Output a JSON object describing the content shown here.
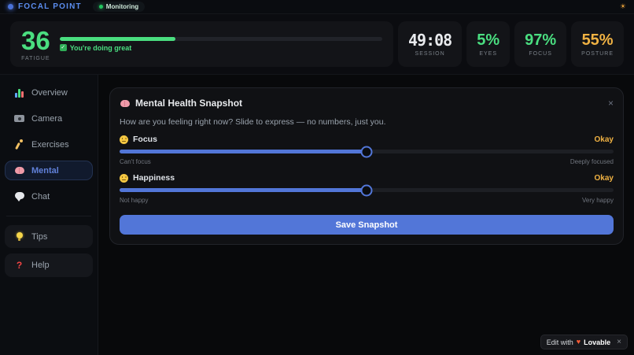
{
  "topbar": {
    "app_name": "FOCAL POINT",
    "status_badge": "Monitoring",
    "sun_glyph": "☀"
  },
  "stats": {
    "fatigue": {
      "value": "36",
      "label": "FATIGUE",
      "progress_pct": 36,
      "check_glyph": "✓",
      "message": "You're doing great"
    },
    "cards": [
      {
        "value": "49:08",
        "label": "SESSION",
        "color": "#e8eaed"
      },
      {
        "value": "5%",
        "label": "EYES",
        "color": "#4ade80"
      },
      {
        "value": "97%",
        "label": "FOCUS",
        "color": "#4ade80"
      },
      {
        "value": "55%",
        "label": "POSTURE",
        "color": "#f0b243"
      }
    ]
  },
  "sidebar": {
    "items": [
      {
        "icon": "bar-chart-icon",
        "label": "Overview",
        "active": false
      },
      {
        "icon": "camera-icon",
        "label": "Camera",
        "active": false
      },
      {
        "icon": "runner-icon",
        "label": "Exercises",
        "active": false
      },
      {
        "icon": "brain-icon",
        "label": "Mental",
        "active": true
      },
      {
        "icon": "chat-icon",
        "label": "Chat",
        "active": false
      }
    ],
    "footer_items": [
      {
        "icon": "lightbulb-icon",
        "label": "Tips"
      },
      {
        "icon": "question-mark-icon",
        "glyph": "?",
        "label": "Help"
      }
    ]
  },
  "mental_card": {
    "icon": "brain-icon",
    "title": "Mental Health Snapshot",
    "close_glyph": "×",
    "subtitle": "How are you feeling right now? Slide to express — no numbers, just you.",
    "sliders": [
      {
        "icon": "neutral-face-icon",
        "label": "Focus",
        "value_text": "Okay",
        "percent": 50,
        "min_label": "Can't focus",
        "max_label": "Deeply focused"
      },
      {
        "icon": "neutral-face-icon",
        "label": "Happiness",
        "value_text": "Okay",
        "percent": 50,
        "min_label": "Not happy",
        "max_label": "Very happy"
      }
    ],
    "save_button": "Save Snapshot"
  },
  "lovable_badge": {
    "prefix": "Edit with",
    "heart_glyph": "♥",
    "brand": "Lovable",
    "close_glyph": "×"
  },
  "colors": {
    "accent_blue": "#5276d8",
    "logo_blue": "#5b8def",
    "success_green": "#4ade80",
    "warn_amber": "#f0b243",
    "monitor_dot_green": "#22c55e"
  }
}
